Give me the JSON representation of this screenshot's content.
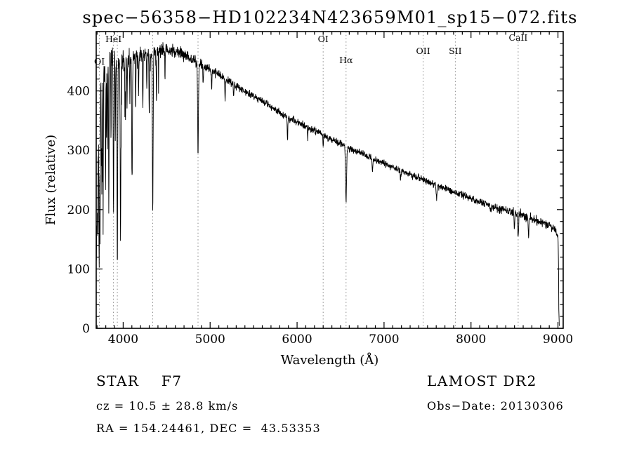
{
  "title": "spec−56358−HD102234N423659M01_sp15−072.fits",
  "footer": {
    "class_line": "STAR    F7",
    "survey": "LAMOST DR2",
    "cz_line": "cz = 10.5 ± 28.8 km/s",
    "obs_line": "Obs−Date: 20130306",
    "coord_line": "RA = 154.24461, DEC =  43.53353"
  },
  "chart_data": {
    "type": "line",
    "title": "spec−56358−HD102234N423659M01_sp15−072.fits",
    "xlabel": "Wavelength (Å)",
    "ylabel": "Flux (relative)",
    "xlim": [
      3690,
      9060
    ],
    "ylim": [
      0,
      500
    ],
    "xticks": [
      4000,
      5000,
      6000,
      7000,
      8000,
      9000
    ],
    "yticks": [
      0,
      100,
      200,
      300,
      400
    ],
    "x_minor_step": 100,
    "y_minor_step": 20,
    "grid": false,
    "legend": "none",
    "line_color": "#000000",
    "reference_line_color": "#8a8a8a",
    "annotations": [
      {
        "label": "OI",
        "wavelength": 3727,
        "label_y": 92
      },
      {
        "label": "HeI",
        "wavelength": 3889,
        "label_y": 60
      },
      {
        "label": "OI",
        "wavelength": 6300,
        "label_y": 60
      },
      {
        "label": "Hα",
        "wavelength": 6563,
        "label_y": 90
      },
      {
        "label": "OII",
        "wavelength": 7450,
        "label_y": 77
      },
      {
        "label": "SII",
        "wavelength": 7820,
        "label_y": 77
      },
      {
        "label": "CaII",
        "wavelength": 8542,
        "label_y": 58
      }
    ],
    "reference_lines": [
      3727,
      3889,
      3933,
      4340,
      4861,
      6300,
      6563,
      7450,
      7820,
      8542
    ],
    "spectrum": {
      "wave_start": 3692,
      "wave_end": 9010,
      "wave_step": 2.5,
      "continuum": [
        [
          3692,
          135
        ],
        [
          3700,
          210
        ],
        [
          3712,
          290
        ],
        [
          3725,
          345
        ],
        [
          3740,
          400
        ],
        [
          3760,
          428
        ],
        [
          3785,
          442
        ],
        [
          3810,
          450
        ],
        [
          3840,
          458
        ],
        [
          3870,
          455
        ],
        [
          3900,
          452
        ],
        [
          3950,
          450
        ],
        [
          4000,
          448
        ],
        [
          4050,
          452
        ],
        [
          4100,
          456
        ],
        [
          4150,
          458
        ],
        [
          4200,
          460
        ],
        [
          4250,
          462
        ],
        [
          4300,
          464
        ],
        [
          4350,
          466
        ],
        [
          4400,
          467
        ],
        [
          4450,
          468
        ],
        [
          4500,
          469
        ],
        [
          4550,
          468
        ],
        [
          4600,
          466
        ],
        [
          4650,
          464
        ],
        [
          4700,
          461
        ],
        [
          4750,
          456
        ],
        [
          4800,
          452
        ],
        [
          4850,
          449
        ],
        [
          4900,
          444
        ],
        [
          4950,
          440
        ],
        [
          5000,
          436
        ],
        [
          5100,
          427
        ],
        [
          5200,
          418
        ],
        [
          5300,
          409
        ],
        [
          5400,
          400
        ],
        [
          5500,
          391
        ],
        [
          5600,
          382
        ],
        [
          5700,
          373
        ],
        [
          5800,
          363
        ],
        [
          5900,
          355
        ],
        [
          6000,
          347
        ],
        [
          6100,
          340
        ],
        [
          6200,
          333
        ],
        [
          6300,
          326
        ],
        [
          6400,
          318
        ],
        [
          6500,
          311
        ],
        [
          6600,
          303
        ],
        [
          6700,
          297
        ],
        [
          6800,
          291
        ],
        [
          6900,
          284
        ],
        [
          7000,
          278
        ],
        [
          7100,
          271
        ],
        [
          7200,
          265
        ],
        [
          7300,
          259
        ],
        [
          7400,
          253
        ],
        [
          7500,
          248
        ],
        [
          7600,
          242
        ],
        [
          7700,
          236
        ],
        [
          7800,
          230
        ],
        [
          7900,
          224
        ],
        [
          8000,
          219
        ],
        [
          8100,
          213
        ],
        [
          8200,
          208
        ],
        [
          8300,
          203
        ],
        [
          8400,
          199
        ],
        [
          8500,
          195
        ],
        [
          8600,
          190
        ],
        [
          8700,
          185
        ],
        [
          8800,
          179
        ],
        [
          8850,
          176
        ],
        [
          8900,
          172
        ],
        [
          8950,
          168
        ],
        [
          8985,
          163
        ],
        [
          9000,
          158
        ],
        [
          9006,
          120
        ],
        [
          9010,
          15
        ]
      ],
      "absorption_lines": [
        [
          3705,
          120,
          2.5
        ],
        [
          3722,
          150,
          2.5
        ],
        [
          3727,
          170,
          3
        ],
        [
          3735,
          190,
          2.5
        ],
        [
          3750,
          160,
          2.5
        ],
        [
          3759,
          180,
          2.5
        ],
        [
          3770,
          200,
          2.5
        ],
        [
          3798,
          220,
          3
        ],
        [
          3820,
          150,
          2.5
        ],
        [
          3835,
          250,
          3
        ],
        [
          3860,
          140,
          2.5
        ],
        [
          3889,
          280,
          3.5
        ],
        [
          3910,
          120,
          2.5
        ],
        [
          3933,
          325,
          4
        ],
        [
          3970,
          295,
          4
        ],
        [
          4026,
          85,
          3
        ],
        [
          4045,
          70,
          2.5
        ],
        [
          4077,
          80,
          2.5
        ],
        [
          4102,
          215,
          4
        ],
        [
          4144,
          75,
          3
        ],
        [
          4178,
          60,
          2.5
        ],
        [
          4226,
          85,
          3
        ],
        [
          4271,
          65,
          2.5
        ],
        [
          4300,
          100,
          3.5
        ],
        [
          4340,
          270,
          4.5
        ],
        [
          4383,
          80,
          3
        ],
        [
          4481,
          50,
          2.5
        ],
        [
          4861,
          150,
          5
        ],
        [
          4920,
          35,
          3
        ],
        [
          5018,
          30,
          3
        ],
        [
          5172,
          35,
          3.5
        ],
        [
          5270,
          25,
          3
        ],
        [
          5890,
          38,
          3.5
        ],
        [
          6122,
          20,
          3
        ],
        [
          6300,
          18,
          3
        ],
        [
          6563,
          92,
          6
        ],
        [
          6867,
          22,
          4
        ],
        [
          7190,
          14,
          4
        ],
        [
          7605,
          26,
          5
        ],
        [
          8230,
          15,
          4
        ],
        [
          8498,
          28,
          4
        ],
        [
          8542,
          42,
          4.5
        ],
        [
          8662,
          34,
          4.5
        ]
      ],
      "noise": [
        [
          3692,
          20
        ],
        [
          3800,
          17
        ],
        [
          3900,
          14
        ],
        [
          4000,
          11
        ],
        [
          4200,
          8
        ],
        [
          4400,
          6.5
        ],
        [
          4700,
          5
        ],
        [
          5000,
          3.5
        ],
        [
          5500,
          3.2
        ],
        [
          6000,
          3
        ],
        [
          6500,
          2.8
        ],
        [
          7000,
          2.8
        ],
        [
          7600,
          3
        ],
        [
          8200,
          3.5
        ],
        [
          8700,
          4
        ],
        [
          9010,
          4.5
        ]
      ]
    }
  }
}
